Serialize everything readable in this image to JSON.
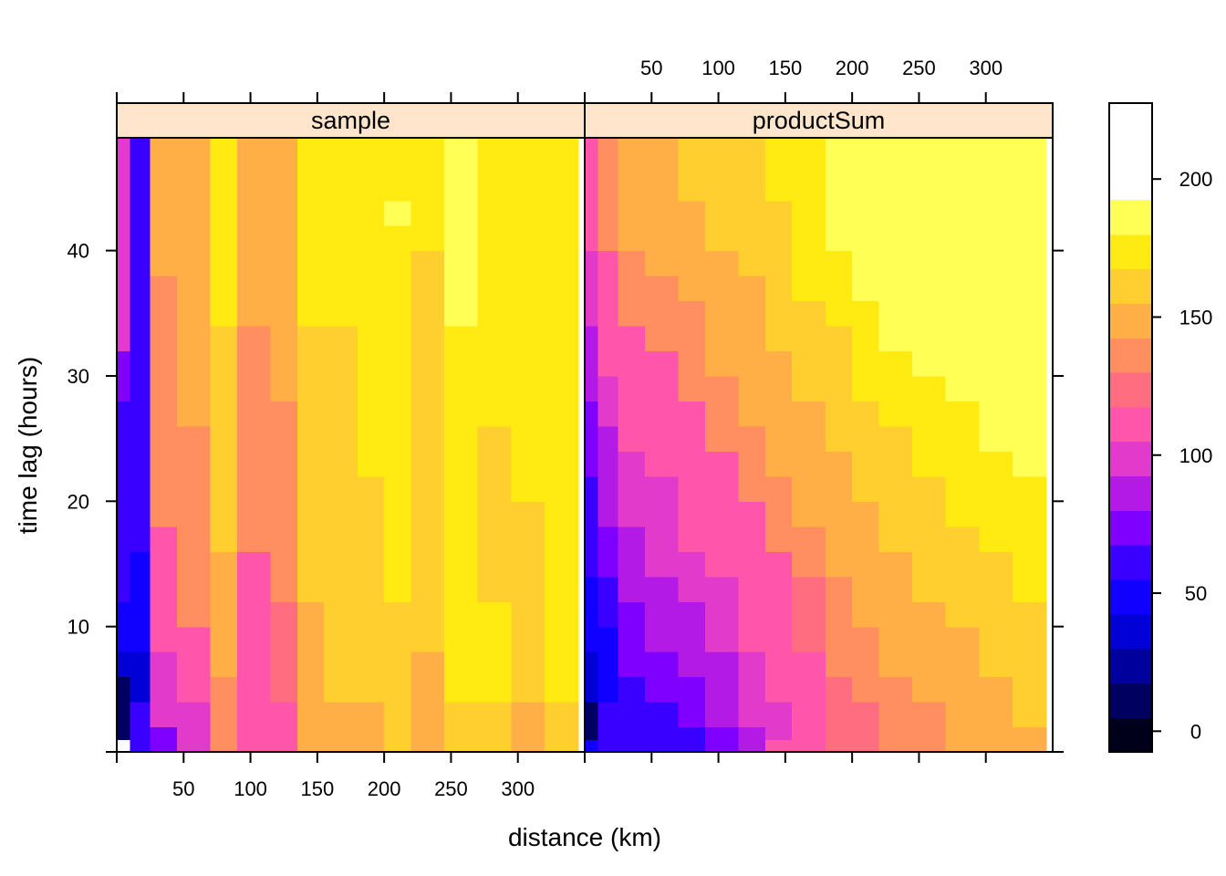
{
  "chart_data": {
    "type": "heatmap",
    "xlabel": "distance (km)",
    "ylabel": "time lag (hours)",
    "x_ticks": [
      50,
      100,
      150,
      200,
      250,
      300
    ],
    "y_ticks": [
      10,
      20,
      30,
      40
    ],
    "xlim": [
      0,
      350
    ],
    "ylim": [
      0,
      49
    ],
    "x_breaks": [
      0,
      10,
      25,
      45,
      70,
      90,
      115,
      135,
      155,
      180,
      200,
      220,
      245,
      270,
      295,
      320,
      345
    ],
    "y_breaks": [
      0,
      1,
      2,
      4,
      6,
      8,
      10,
      12,
      14,
      16,
      18,
      20,
      22,
      24,
      26,
      28,
      30,
      32,
      34,
      36,
      38,
      40,
      42,
      44,
      46,
      48,
      49
    ],
    "colorkey": {
      "ticks": [
        0,
        50,
        100,
        150,
        200
      ],
      "range": [
        -7.5,
        227.5
      ],
      "step": 12.5,
      "colors": [
        "#00001A",
        "#000060",
        "#00009C",
        "#0000D7",
        "#0F00FF",
        "#3A00FF",
        "#7F00FF",
        "#B31AE5",
        "#E23BCC",
        "#FF55AA",
        "#FF6D80",
        "#FF8E61",
        "#FFAF45",
        "#FFCF2F",
        "#FFEB12",
        "#FFFF55"
      ]
    },
    "panels": [
      {
        "name": "sample",
        "values": [
          [
            null,
            55,
            75,
            95,
            130,
            105,
            115,
            145,
            145,
            145,
            160,
            145,
            160,
            160,
            145,
            160,
            145
          ],
          [
            10,
            55,
            75,
            95,
            130,
            105,
            115,
            145,
            145,
            145,
            160,
            145,
            160,
            160,
            145,
            160,
            145
          ],
          [
            10,
            55,
            100,
            95,
            130,
            105,
            115,
            145,
            145,
            145,
            160,
            145,
            160,
            160,
            145,
            160,
            145
          ],
          [
            10,
            35,
            100,
            115,
            130,
            115,
            125,
            145,
            160,
            160,
            160,
            145,
            170,
            170,
            160,
            170,
            170
          ],
          [
            30,
            35,
            100,
            115,
            145,
            115,
            125,
            145,
            160,
            160,
            160,
            145,
            170,
            170,
            160,
            170,
            170
          ],
          [
            45,
            45,
            115,
            115,
            145,
            115,
            125,
            145,
            160,
            160,
            160,
            160,
            170,
            170,
            160,
            170,
            170
          ],
          [
            45,
            45,
            115,
            130,
            145,
            115,
            125,
            145,
            160,
            160,
            160,
            160,
            170,
            170,
            160,
            170,
            170
          ],
          [
            55,
            45,
            115,
            130,
            145,
            115,
            130,
            160,
            160,
            160,
            170,
            160,
            170,
            160,
            160,
            170,
            170
          ],
          [
            55,
            45,
            115,
            130,
            145,
            115,
            130,
            160,
            160,
            160,
            170,
            160,
            170,
            160,
            160,
            170,
            170
          ],
          [
            60,
            55,
            115,
            130,
            160,
            130,
            130,
            160,
            160,
            160,
            170,
            160,
            170,
            160,
            160,
            170,
            170
          ],
          [
            60,
            55,
            130,
            130,
            160,
            130,
            130,
            160,
            160,
            160,
            170,
            160,
            170,
            160,
            160,
            170,
            170
          ],
          [
            60,
            55,
            130,
            130,
            160,
            130,
            130,
            160,
            160,
            160,
            170,
            160,
            170,
            160,
            170,
            170,
            170
          ],
          [
            60,
            55,
            130,
            130,
            160,
            130,
            130,
            160,
            160,
            170,
            170,
            160,
            170,
            160,
            170,
            170,
            170
          ],
          [
            65,
            55,
            130,
            130,
            160,
            130,
            130,
            160,
            160,
            170,
            170,
            160,
            170,
            160,
            170,
            170,
            170
          ],
          [
            65,
            55,
            130,
            145,
            160,
            130,
            130,
            160,
            160,
            170,
            170,
            160,
            170,
            170,
            170,
            170,
            170
          ],
          [
            75,
            55,
            130,
            145,
            160,
            130,
            145,
            160,
            160,
            170,
            170,
            160,
            170,
            170,
            170,
            170,
            170
          ],
          [
            75,
            55,
            130,
            145,
            160,
            130,
            145,
            160,
            160,
            170,
            170,
            160,
            170,
            170,
            170,
            170,
            170
          ],
          [
            100,
            55,
            130,
            145,
            160,
            130,
            145,
            160,
            160,
            170,
            170,
            160,
            170,
            170,
            170,
            170,
            160
          ],
          [
            100,
            55,
            130,
            145,
            170,
            145,
            145,
            170,
            170,
            170,
            170,
            160,
            185,
            170,
            170,
            170,
            160
          ],
          [
            100,
            55,
            130,
            145,
            170,
            145,
            145,
            170,
            170,
            170,
            170,
            160,
            185,
            170,
            170,
            170,
            170
          ],
          [
            100,
            55,
            145,
            145,
            170,
            145,
            145,
            170,
            170,
            170,
            170,
            160,
            185,
            170,
            170,
            170,
            170
          ],
          [
            100,
            55,
            145,
            145,
            170,
            145,
            145,
            170,
            170,
            170,
            170,
            170,
            185,
            170,
            170,
            170,
            170
          ],
          [
            100,
            55,
            145,
            145,
            170,
            145,
            145,
            170,
            170,
            170,
            185,
            170,
            185,
            170,
            170,
            170,
            170
          ],
          [
            100,
            55,
            145,
            145,
            170,
            145,
            145,
            170,
            170,
            170,
            170,
            170,
            185,
            170,
            170,
            170,
            170
          ],
          [
            100,
            55,
            145,
            145,
            170,
            145,
            145,
            170,
            170,
            170,
            170,
            170,
            185,
            170,
            170,
            170,
            170
          ],
          [
            100,
            55,
            145,
            145,
            170,
            145,
            145,
            170,
            170,
            170,
            170,
            170,
            185,
            170,
            170,
            170,
            170
          ]
        ]
      },
      {
        "name": "productSum",
        "values": [
          [
            45,
            55,
            60,
            60,
            65,
            75,
            90,
            110,
            115,
            125,
            125,
            130,
            130,
            145,
            145,
            145,
            145
          ],
          [
            15,
            55,
            60,
            60,
            65,
            75,
            90,
            100,
            115,
            125,
            125,
            130,
            130,
            145,
            145,
            145,
            160
          ],
          [
            15,
            55,
            60,
            60,
            75,
            90,
            100,
            100,
            115,
            125,
            125,
            130,
            130,
            145,
            145,
            160,
            160
          ],
          [
            30,
            45,
            60,
            75,
            75,
            90,
            100,
            110,
            115,
            125,
            130,
            130,
            145,
            145,
            145,
            160,
            170
          ],
          [
            30,
            45,
            75,
            75,
            90,
            90,
            100,
            110,
            115,
            130,
            130,
            145,
            145,
            145,
            160,
            160,
            170
          ],
          [
            45,
            45,
            75,
            90,
            90,
            100,
            110,
            110,
            125,
            130,
            130,
            145,
            145,
            145,
            160,
            160,
            170
          ],
          [
            45,
            60,
            75,
            90,
            90,
            100,
            110,
            115,
            125,
            130,
            145,
            145,
            145,
            160,
            160,
            160,
            170
          ],
          [
            45,
            60,
            90,
            90,
            100,
            100,
            110,
            115,
            125,
            130,
            145,
            145,
            160,
            160,
            160,
            170,
            170
          ],
          [
            60,
            75,
            90,
            100,
            100,
            110,
            115,
            115,
            130,
            145,
            145,
            145,
            160,
            160,
            160,
            170,
            170
          ],
          [
            60,
            75,
            90,
            100,
            110,
            110,
            115,
            130,
            130,
            145,
            145,
            160,
            160,
            160,
            170,
            170,
            185
          ],
          [
            60,
            90,
            100,
            100,
            110,
            115,
            115,
            130,
            145,
            145,
            145,
            160,
            160,
            170,
            170,
            170,
            185
          ],
          [
            60,
            90,
            100,
            100,
            110,
            115,
            130,
            130,
            145,
            145,
            160,
            160,
            160,
            170,
            170,
            170,
            185
          ],
          [
            75,
            90,
            100,
            110,
            115,
            115,
            130,
            145,
            145,
            145,
            160,
            160,
            170,
            170,
            170,
            185,
            185
          ],
          [
            75,
            90,
            110,
            110,
            115,
            130,
            130,
            145,
            145,
            160,
            160,
            160,
            170,
            170,
            185,
            185,
            185
          ],
          [
            75,
            100,
            110,
            115,
            115,
            130,
            145,
            145,
            145,
            160,
            160,
            170,
            170,
            170,
            185,
            185,
            200
          ],
          [
            90,
            100,
            115,
            115,
            130,
            130,
            145,
            145,
            160,
            160,
            170,
            170,
            170,
            185,
            185,
            185,
            200
          ],
          [
            90,
            110,
            115,
            115,
            130,
            145,
            145,
            145,
            160,
            160,
            170,
            170,
            185,
            185,
            185,
            200,
            200
          ],
          [
            90,
            110,
            115,
            130,
            130,
            145,
            145,
            160,
            160,
            160,
            170,
            185,
            185,
            185,
            200,
            200,
            200
          ],
          [
            100,
            110,
            130,
            130,
            130,
            145,
            145,
            160,
            160,
            170,
            170,
            185,
            185,
            185,
            200,
            200,
            200
          ],
          [
            100,
            110,
            130,
            130,
            145,
            145,
            145,
            160,
            170,
            170,
            185,
            185,
            185,
            200,
            200,
            200,
            200
          ],
          [
            100,
            110,
            130,
            145,
            145,
            145,
            160,
            160,
            170,
            170,
            185,
            185,
            185,
            200,
            200,
            200,
            200
          ],
          [
            110,
            130,
            145,
            145,
            145,
            160,
            160,
            160,
            170,
            185,
            185,
            185,
            200,
            200,
            200,
            200,
            210
          ],
          [
            110,
            130,
            145,
            145,
            145,
            160,
            160,
            160,
            170,
            185,
            185,
            185,
            200,
            200,
            200,
            200,
            210
          ],
          [
            110,
            130,
            145,
            145,
            160,
            160,
            160,
            170,
            170,
            185,
            185,
            185,
            200,
            200,
            200,
            200,
            210
          ],
          [
            110,
            130,
            145,
            145,
            160,
            160,
            160,
            170,
            170,
            185,
            185,
            185,
            200,
            200,
            200,
            200,
            210
          ],
          [
            110,
            130,
            145,
            145,
            160,
            160,
            160,
            170,
            170,
            185,
            185,
            185,
            200,
            200,
            200,
            200,
            210
          ]
        ]
      }
    ]
  }
}
